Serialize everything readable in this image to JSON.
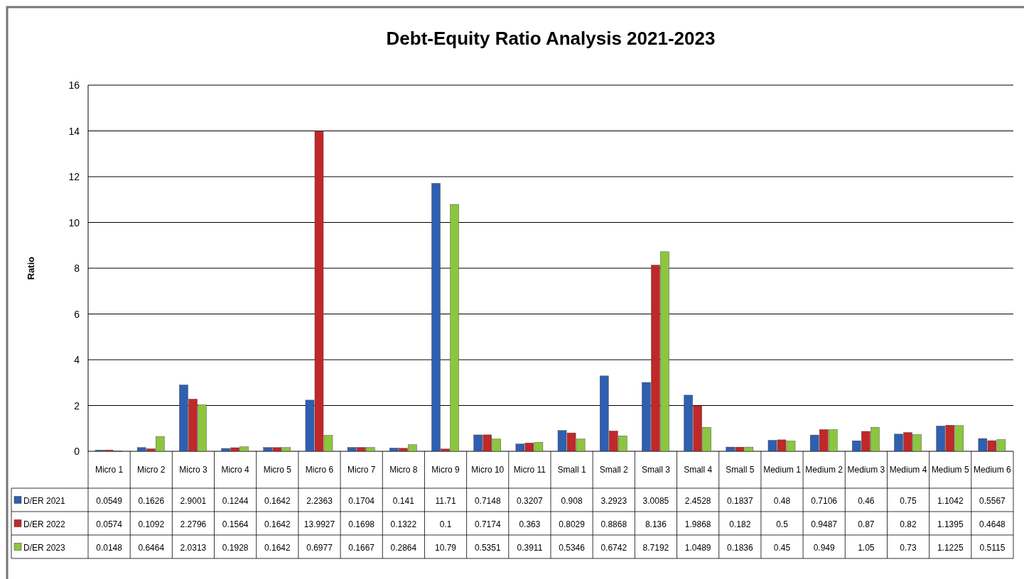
{
  "chart_data": {
    "type": "bar",
    "title": "Debt-Equity Ratio Analysis 2021-2023",
    "ylabel": "Ratio",
    "categories": [
      "Micro 1",
      "Micro 2",
      "Micro 3",
      "Micro 4",
      "Micro 5",
      "Micro 6",
      "Micro 7",
      "Micro 8",
      "Micro 9",
      "Micro 10",
      "Micro 11",
      "Small 1",
      "Small 2",
      "Small 3",
      "Small 4",
      "Small 5",
      "Medium 1",
      "Medium 2",
      "Medium 3",
      "Medium 4",
      "Medium 5",
      "Medium 6"
    ],
    "series": [
      {
        "name": "D/ER 2021",
        "color": "#2f5fb0",
        "values": [
          0.0549,
          0.1626,
          2.9001,
          0.1244,
          0.1642,
          2.2363,
          0.1704,
          0.141,
          11.71,
          0.7148,
          0.3207,
          0.908,
          3.2923,
          3.0085,
          2.4528,
          0.1837,
          0.48,
          0.7106,
          0.46,
          0.75,
          1.1042,
          0.5567
        ]
      },
      {
        "name": "D/ER 2022",
        "color": "#c0282a",
        "values": [
          0.0574,
          0.1092,
          2.2796,
          0.1564,
          0.1642,
          13.9927,
          0.1698,
          0.1322,
          0.1,
          0.7174,
          0.363,
          0.8029,
          0.8868,
          8.136,
          1.9868,
          0.182,
          0.5,
          0.9487,
          0.87,
          0.82,
          1.1395,
          0.4648
        ]
      },
      {
        "name": "D/ER 2023",
        "color": "#8cc63e",
        "values": [
          0.0148,
          0.6464,
          2.0313,
          0.1928,
          0.1642,
          0.6977,
          0.1667,
          0.2864,
          10.79,
          0.5351,
          0.3911,
          0.5346,
          0.6742,
          8.7192,
          1.0489,
          0.1836,
          0.45,
          0.949,
          1.05,
          0.73,
          1.1225,
          0.5115
        ]
      }
    ],
    "ylim": [
      0,
      16
    ],
    "yticks": [
      0,
      2,
      4,
      6,
      8,
      10,
      12,
      14,
      16
    ],
    "grid": "y",
    "legend": "bottom",
    "data_labels": true
  }
}
